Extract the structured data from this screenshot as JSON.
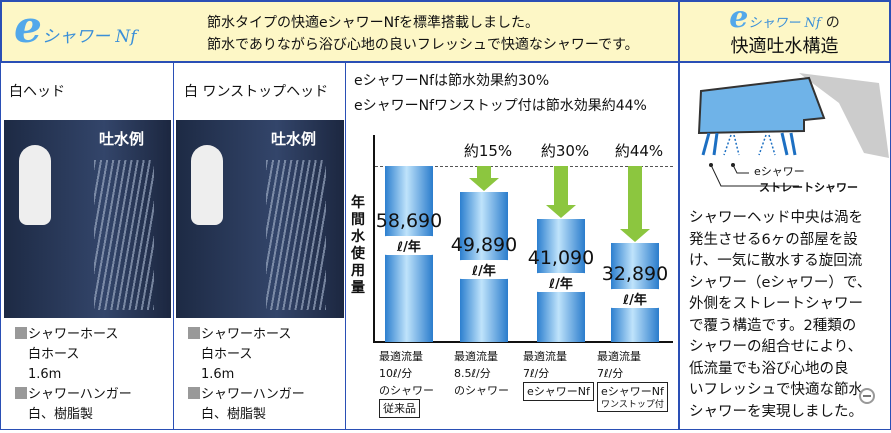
{
  "header": {
    "logo": {
      "e": "e",
      "rest": "シャワー Nf"
    },
    "line1": "節水タイプの快適eシャワーNfを標準搭載しました。",
    "line2": "節水でありながら浴び心地の良いフレッシュで快適なシャワーです。",
    "right_logo": {
      "e": "e",
      "rest": "シャワー Nf",
      "suffix": "の"
    },
    "right_title": "快適吐水構造"
  },
  "columns": [
    {
      "title": "白ヘッド",
      "photo_label": "吐水例",
      "specs": [
        "シャワーホース",
        "白ホース",
        "1.6m",
        "シャワーハンガー",
        "白、樹脂製"
      ]
    },
    {
      "title": "白 ワンストップヘッド",
      "photo_label": "吐水例",
      "specs": [
        "シャワーホース",
        "白ホース",
        "1.6m",
        "シャワーハンガー",
        "白、樹脂製"
      ]
    }
  ],
  "effect": {
    "line1": "eシャワーNfは節水効果約30%",
    "line2": "eシャワーNfワンストップ付は節水効果約44%"
  },
  "chart_data": {
    "type": "bar",
    "ylabel": "年間水使用量",
    "unit": "ℓ/年",
    "categories": [
      {
        "lines": [
          "最適流量",
          "10ℓ/分",
          "のシャワー"
        ],
        "tag": "従来品"
      },
      {
        "lines": [
          "最適流量",
          "8.5ℓ/分",
          "のシャワー"
        ],
        "tag": ""
      },
      {
        "lines": [
          "最適流量",
          "7ℓ/分"
        ],
        "tag": "eシャワーNf"
      },
      {
        "lines": [
          "最適流量",
          "7ℓ/分"
        ],
        "tag": "eシャワーNf",
        "tag2": "ワンストップ付"
      }
    ],
    "values": [
      58690,
      49890,
      41090,
      32890
    ],
    "value_labels": [
      "58,690",
      "49,890",
      "41,090",
      "32,890"
    ],
    "reductions": [
      "",
      "約15%",
      "約30%",
      "約44%"
    ],
    "colors": {
      "bar": "#3a8ad6",
      "arrow": "#8cc63f"
    }
  },
  "structure": {
    "label_e": "eシャワー",
    "label_straight": "ストレートシャワー",
    "text": [
      "シャワーヘッド中央は渦を",
      "発生させる6ヶの部屋を設",
      "け、一気に散水する旋回流",
      "シャワー（eシャワー）で、",
      "外側をストレートシャワー",
      "で覆う構造です。2種類の",
      "シャワーの組合せにより、",
      "低流量でも浴び心地の良",
      "いフレッシュで快適な節水",
      "シャワーを実現しました。"
    ]
  }
}
